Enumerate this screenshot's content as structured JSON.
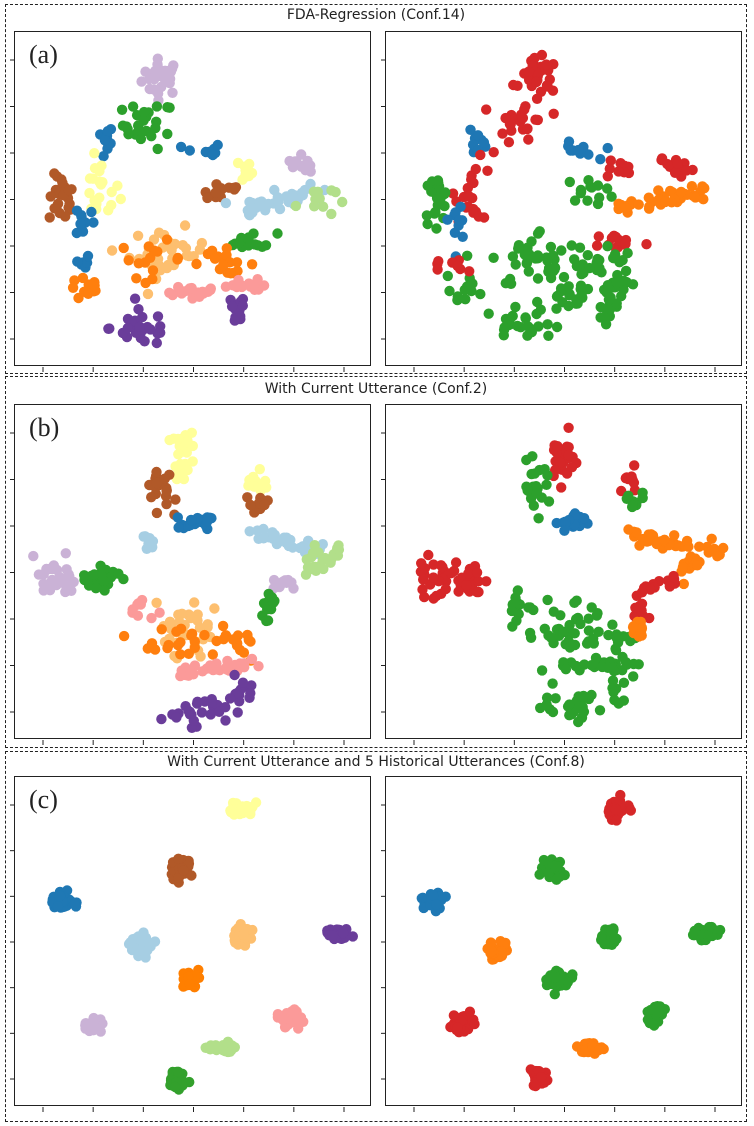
{
  "sections": [
    {
      "title": "FDA-Regression (Conf.14)",
      "label": "(a)"
    },
    {
      "title": "With Current Utterance (Conf.2)",
      "label": "(b)"
    },
    {
      "title": "With Current Utterance and 5 Historical Utterances (Conf.8)",
      "label": "(c)"
    }
  ],
  "colors": {
    "blue": "#1f77b4",
    "orange": "#ff7f0e",
    "green": "#2ca02c",
    "red": "#d62728",
    "purple": "#6a3d9a",
    "lightpurple": "#cab2d6",
    "brown": "#b15928",
    "yellow": "#ffff99",
    "lightblue": "#a6cee3",
    "lightorange": "#fdbf6f",
    "pink": "#fb9a99",
    "lightgreen": "#b2df8a",
    "paired_blue": "#1f78b4",
    "paired_orange": "#ff7f00",
    "paired_green": "#33a02c"
  },
  "chart_data": [
    {
      "type": "scatter",
      "panel": "a-left",
      "xlim": [
        0,
        100
      ],
      "ylim": [
        0,
        100
      ],
      "clusters": [
        {
          "color": "lightpurple",
          "x": 40,
          "y": 91,
          "kind": "blob",
          "n": 30,
          "sx": 3,
          "sy": 3
        },
        {
          "color": "green",
          "x": 36,
          "y": 75,
          "kind": "blob",
          "n": 25,
          "sx": 4,
          "sy": 4
        },
        {
          "color": "blue",
          "x": 22,
          "y": 69,
          "kind": "blob",
          "n": 10,
          "sx": 1.5,
          "sy": 3
        },
        {
          "color": "yellow",
          "x": 21,
          "y": 53,
          "kind": "blob",
          "n": 20,
          "sx": 3,
          "sy": 5
        },
        {
          "color": "brown",
          "x": 9,
          "y": 50,
          "kind": "blob",
          "n": 22,
          "sx": 2,
          "sy": 4
        },
        {
          "color": "blue",
          "x": 16,
          "y": 43,
          "kind": "blob",
          "n": 10,
          "sx": 1.5,
          "sy": 3
        },
        {
          "color": "blue",
          "x": 53,
          "y": 66,
          "kind": "blob",
          "n": 10,
          "sx": 3,
          "sy": 1.5
        },
        {
          "color": "yellow",
          "x": 65,
          "y": 60,
          "kind": "blob",
          "n": 10,
          "sx": 3,
          "sy": 2
        },
        {
          "color": "brown",
          "x": 58,
          "y": 53,
          "kind": "blob",
          "n": 14,
          "sx": 4,
          "sy": 2
        },
        {
          "color": "lightpurple",
          "x": 80,
          "y": 63,
          "kind": "line",
          "n": 12,
          "x2": 87,
          "y2": 61,
          "jit": 1.5
        },
        {
          "color": "lightblue",
          "x": 65,
          "y": 47,
          "kind": "line",
          "n": 40,
          "x2": 92,
          "y2": 53,
          "jit": 1.5
        },
        {
          "color": "lightgreen",
          "x": 88,
          "y": 50,
          "kind": "blob",
          "n": 12,
          "sx": 3,
          "sy": 3
        },
        {
          "color": "green",
          "x": 68,
          "y": 36,
          "kind": "blob",
          "n": 15,
          "sx": 4,
          "sy": 1.5
        },
        {
          "color": "lightorange",
          "x": 42,
          "y": 32,
          "kind": "blob",
          "n": 35,
          "sx": 6,
          "sy": 4
        },
        {
          "color": "orange",
          "x": 37,
          "y": 30,
          "kind": "blob",
          "n": 15,
          "sx": 5,
          "sy": 3
        },
        {
          "color": "orange",
          "x": 59,
          "y": 29,
          "kind": "blob",
          "n": 18,
          "sx": 5,
          "sy": 2
        },
        {
          "color": "pink",
          "x": 43,
          "y": 18,
          "kind": "line",
          "n": 22,
          "x2": 55,
          "y2": 19,
          "jit": 1.5
        },
        {
          "color": "pink",
          "x": 60,
          "y": 20,
          "kind": "line",
          "n": 14,
          "x2": 72,
          "y2": 22,
          "jit": 1.2
        },
        {
          "color": "purple",
          "x": 34,
          "y": 7,
          "kind": "blob",
          "n": 28,
          "sx": 5,
          "sy": 3
        },
        {
          "color": "purple",
          "x": 63,
          "y": 12,
          "kind": "blob",
          "n": 12,
          "sx": 1.5,
          "sy": 3
        },
        {
          "color": "orange",
          "x": 17,
          "y": 20,
          "kind": "blob",
          "n": 12,
          "sx": 3,
          "sy": 2
        },
        {
          "color": "blue",
          "x": 15,
          "y": 28,
          "kind": "blob",
          "n": 6,
          "sx": 1.5,
          "sy": 2
        }
      ]
    },
    {
      "type": "scatter",
      "panel": "a-right",
      "xlim": [
        0,
        100
      ],
      "ylim": [
        0,
        100
      ],
      "clusters": [
        {
          "color": "red",
          "x": 42,
          "y": 91,
          "kind": "blob",
          "n": 30,
          "sx": 3,
          "sy": 3
        },
        {
          "color": "red",
          "x": 37,
          "y": 76,
          "kind": "blob",
          "n": 25,
          "sx": 4,
          "sy": 4
        },
        {
          "color": "blue",
          "x": 23,
          "y": 70,
          "kind": "blob",
          "n": 10,
          "sx": 1.5,
          "sy": 3
        },
        {
          "color": "red",
          "x": 22,
          "y": 53,
          "kind": "blob",
          "n": 20,
          "sx": 3,
          "sy": 5
        },
        {
          "color": "green",
          "x": 10,
          "y": 50,
          "kind": "blob",
          "n": 22,
          "sx": 2,
          "sy": 4
        },
        {
          "color": "blue",
          "x": 17,
          "y": 43,
          "kind": "blob",
          "n": 10,
          "sx": 1.5,
          "sy": 3
        },
        {
          "color": "blue",
          "x": 54,
          "y": 66,
          "kind": "blob",
          "n": 10,
          "sx": 3,
          "sy": 1.5
        },
        {
          "color": "red",
          "x": 66,
          "y": 60,
          "kind": "blob",
          "n": 10,
          "sx": 3,
          "sy": 2
        },
        {
          "color": "green",
          "x": 58,
          "y": 53,
          "kind": "blob",
          "n": 14,
          "sx": 4,
          "sy": 2
        },
        {
          "color": "red",
          "x": 81,
          "y": 63,
          "kind": "line",
          "n": 12,
          "x2": 87,
          "y2": 60,
          "jit": 1.5
        },
        {
          "color": "orange",
          "x": 66,
          "y": 47,
          "kind": "line",
          "n": 40,
          "x2": 93,
          "y2": 53,
          "jit": 1.5
        },
        {
          "color": "red",
          "x": 67,
          "y": 36,
          "kind": "blob",
          "n": 14,
          "sx": 4,
          "sy": 1.5
        },
        {
          "color": "green",
          "x": 43,
          "y": 30,
          "kind": "blob",
          "n": 40,
          "sx": 8,
          "sy": 5
        },
        {
          "color": "green",
          "x": 60,
          "y": 29,
          "kind": "blob",
          "n": 22,
          "sx": 6,
          "sy": 3
        },
        {
          "color": "green",
          "x": 46,
          "y": 18,
          "kind": "line",
          "n": 20,
          "x2": 58,
          "y2": 20,
          "jit": 1.5
        },
        {
          "color": "green",
          "x": 62,
          "y": 20,
          "kind": "line",
          "n": 14,
          "x2": 73,
          "y2": 22,
          "jit": 1.2
        },
        {
          "color": "green",
          "x": 36,
          "y": 7,
          "kind": "blob",
          "n": 25,
          "sx": 5,
          "sy": 3
        },
        {
          "color": "green",
          "x": 64,
          "y": 12,
          "kind": "blob",
          "n": 12,
          "sx": 1.5,
          "sy": 3
        },
        {
          "color": "green",
          "x": 18,
          "y": 20,
          "kind": "blob",
          "n": 12,
          "sx": 3,
          "sy": 2
        },
        {
          "color": "red",
          "x": 15,
          "y": 27,
          "kind": "blob",
          "n": 8,
          "sx": 3,
          "sy": 2
        }
      ]
    },
    {
      "type": "scatter",
      "panel": "b-left",
      "xlim": [
        0,
        100
      ],
      "ylim": [
        0,
        100
      ],
      "clusters": [
        {
          "color": "yellow",
          "x": 47,
          "y": 89,
          "kind": "blob",
          "n": 25,
          "sx": 2,
          "sy": 4
        },
        {
          "color": "brown",
          "x": 39,
          "y": 78,
          "kind": "blob",
          "n": 25,
          "sx": 2.5,
          "sy": 4
        },
        {
          "color": "blue",
          "x": 46,
          "y": 66,
          "kind": "line",
          "n": 20,
          "x2": 56,
          "y2": 67,
          "jit": 1.5
        },
        {
          "color": "yellow",
          "x": 69,
          "y": 80,
          "kind": "blob",
          "n": 10,
          "sx": 2,
          "sy": 2
        },
        {
          "color": "brown",
          "x": 70,
          "y": 73,
          "kind": "blob",
          "n": 12,
          "sx": 2,
          "sy": 2
        },
        {
          "color": "lightblue",
          "x": 68,
          "y": 63,
          "kind": "line",
          "n": 30,
          "x2": 90,
          "y2": 58,
          "jit": 1.5
        },
        {
          "color": "lightgreen",
          "x": 86,
          "y": 52,
          "kind": "line",
          "n": 25,
          "x2": 98,
          "y2": 58,
          "jit": 2
        },
        {
          "color": "lightpurple",
          "x": 7,
          "y": 49,
          "kind": "blob",
          "n": 25,
          "sx": 3,
          "sy": 3
        },
        {
          "color": "green",
          "x": 21,
          "y": 48,
          "kind": "blob",
          "n": 25,
          "sx": 3,
          "sy": 3
        },
        {
          "color": "lightpurple",
          "x": 73,
          "y": 45,
          "kind": "line",
          "n": 12,
          "x2": 82,
          "y2": 47,
          "jit": 1
        },
        {
          "color": "green",
          "x": 73,
          "y": 38,
          "kind": "blob",
          "n": 14,
          "sx": 2,
          "sy": 3
        },
        {
          "color": "lightorange",
          "x": 49,
          "y": 30,
          "kind": "blob",
          "n": 35,
          "sx": 5,
          "sy": 4
        },
        {
          "color": "orange",
          "x": 45,
          "y": 26,
          "kind": "blob",
          "n": 18,
          "sx": 5,
          "sy": 3
        },
        {
          "color": "orange",
          "x": 64,
          "y": 27,
          "kind": "blob",
          "n": 15,
          "sx": 4,
          "sy": 3
        },
        {
          "color": "pink",
          "x": 45,
          "y": 17,
          "kind": "line",
          "n": 35,
          "x2": 70,
          "y2": 19,
          "jit": 1.2
        },
        {
          "color": "purple",
          "x": 50,
          "y": 4,
          "kind": "blob",
          "n": 25,
          "sx": 5,
          "sy": 2.5
        },
        {
          "color": "purple",
          "x": 65,
          "y": 9,
          "kind": "blob",
          "n": 12,
          "sx": 2,
          "sy": 3
        },
        {
          "color": "pink",
          "x": 34,
          "y": 38,
          "kind": "blob",
          "n": 10,
          "sx": 2,
          "sy": 2
        },
        {
          "color": "lightblue",
          "x": 36,
          "y": 60,
          "kind": "blob",
          "n": 8,
          "sx": 1.5,
          "sy": 2
        }
      ]
    },
    {
      "type": "scatter",
      "panel": "b-right",
      "xlim": [
        0,
        100
      ],
      "ylim": [
        0,
        100
      ],
      "clusters": [
        {
          "color": "red",
          "x": 49,
          "y": 88,
          "kind": "blob",
          "n": 25,
          "sx": 2,
          "sy": 4
        },
        {
          "color": "green",
          "x": 41,
          "y": 78,
          "kind": "blob",
          "n": 25,
          "sx": 2.5,
          "sy": 4
        },
        {
          "color": "blue",
          "x": 48,
          "y": 66,
          "kind": "line",
          "n": 20,
          "x2": 58,
          "y2": 67,
          "jit": 1.5
        },
        {
          "color": "red",
          "x": 70,
          "y": 80,
          "kind": "blob",
          "n": 10,
          "sx": 2,
          "sy": 2
        },
        {
          "color": "green",
          "x": 71,
          "y": 73,
          "kind": "blob",
          "n": 10,
          "sx": 2,
          "sy": 2
        },
        {
          "color": "orange",
          "x": 69,
          "y": 63,
          "kind": "line",
          "n": 30,
          "x2": 90,
          "y2": 58,
          "jit": 1.5
        },
        {
          "color": "orange",
          "x": 87,
          "y": 52,
          "kind": "line",
          "n": 22,
          "x2": 98,
          "y2": 58,
          "jit": 2
        },
        {
          "color": "red",
          "x": 9,
          "y": 48,
          "kind": "blob",
          "n": 25,
          "sx": 3,
          "sy": 3
        },
        {
          "color": "red",
          "x": 21,
          "y": 48,
          "kind": "blob",
          "n": 25,
          "sx": 3,
          "sy": 3
        },
        {
          "color": "red",
          "x": 74,
          "y": 44,
          "kind": "line",
          "n": 14,
          "x2": 84,
          "y2": 47,
          "jit": 1
        },
        {
          "color": "red",
          "x": 74,
          "y": 38,
          "kind": "blob",
          "n": 10,
          "sx": 2,
          "sy": 2
        },
        {
          "color": "green",
          "x": 50,
          "y": 30,
          "kind": "blob",
          "n": 40,
          "sx": 7,
          "sy": 5
        },
        {
          "color": "green",
          "x": 66,
          "y": 27,
          "kind": "blob",
          "n": 15,
          "sx": 4,
          "sy": 3
        },
        {
          "color": "green",
          "x": 47,
          "y": 18,
          "kind": "line",
          "n": 35,
          "x2": 72,
          "y2": 20,
          "jit": 1.2
        },
        {
          "color": "green",
          "x": 53,
          "y": 5,
          "kind": "blob",
          "n": 25,
          "sx": 5,
          "sy": 2.5
        },
        {
          "color": "green",
          "x": 67,
          "y": 10,
          "kind": "blob",
          "n": 10,
          "sx": 2,
          "sy": 3
        },
        {
          "color": "green",
          "x": 35,
          "y": 40,
          "kind": "blob",
          "n": 10,
          "sx": 2,
          "sy": 2
        },
        {
          "color": "orange",
          "x": 73,
          "y": 32,
          "kind": "blob",
          "n": 10,
          "sx": 2,
          "sy": 2
        }
      ]
    },
    {
      "type": "scatter",
      "panel": "c-left",
      "xlim": [
        0,
        100
      ],
      "ylim": [
        0,
        100
      ],
      "clusters": [
        {
          "color": "yellow",
          "x": 65,
          "y": 95,
          "kind": "blob",
          "n": 40,
          "sx": 1.8,
          "sy": 1.2
        },
        {
          "color": "brown",
          "x": 46,
          "y": 75,
          "kind": "blob",
          "n": 40,
          "sx": 1.4,
          "sy": 1.8
        },
        {
          "color": "paired_blue",
          "x": 9,
          "y": 64,
          "kind": "blob",
          "n": 40,
          "sx": 1.6,
          "sy": 1.4
        },
        {
          "color": "lightblue",
          "x": 34,
          "y": 49,
          "kind": "blob",
          "n": 40,
          "sx": 1.6,
          "sy": 1.6
        },
        {
          "color": "lightorange",
          "x": 65,
          "y": 52,
          "kind": "blob",
          "n": 40,
          "sx": 1.4,
          "sy": 1.7
        },
        {
          "color": "purple",
          "x": 95,
          "y": 53,
          "kind": "blob",
          "n": 40,
          "sx": 1.8,
          "sy": 1.2
        },
        {
          "color": "paired_orange",
          "x": 49,
          "y": 37,
          "kind": "blob",
          "n": 40,
          "sx": 1.8,
          "sy": 1.4
        },
        {
          "color": "lightpurple",
          "x": 19,
          "y": 22,
          "kind": "blob",
          "n": 40,
          "sx": 1.8,
          "sy": 1.3
        },
        {
          "color": "pink",
          "x": 80,
          "y": 24,
          "kind": "blob",
          "n": 40,
          "sx": 1.4,
          "sy": 1.7
        },
        {
          "color": "lightgreen",
          "x": 59,
          "y": 14,
          "kind": "blob",
          "n": 40,
          "sx": 2.2,
          "sy": 0.9
        },
        {
          "color": "paired_green",
          "x": 45,
          "y": 3,
          "kind": "blob",
          "n": 40,
          "sx": 1.5,
          "sy": 1.5
        }
      ]
    },
    {
      "type": "scatter",
      "panel": "c-right",
      "xlim": [
        0,
        100
      ],
      "ylim": [
        0,
        100
      ],
      "clusters": [
        {
          "color": "red",
          "x": 66,
          "y": 95,
          "kind": "blob",
          "n": 40,
          "sx": 1.6,
          "sy": 1.3
        },
        {
          "color": "green",
          "x": 46,
          "y": 75,
          "kind": "blob",
          "n": 40,
          "sx": 1.4,
          "sy": 1.8
        },
        {
          "color": "paired_blue",
          "x": 9,
          "y": 64,
          "kind": "blob",
          "n": 40,
          "sx": 1.6,
          "sy": 1.4
        },
        {
          "color": "orange",
          "x": 30,
          "y": 47,
          "kind": "blob",
          "n": 40,
          "sx": 1.4,
          "sy": 1.6
        },
        {
          "color": "green",
          "x": 64,
          "y": 52,
          "kind": "blob",
          "n": 40,
          "sx": 1.4,
          "sy": 1.7
        },
        {
          "color": "green",
          "x": 94,
          "y": 53,
          "kind": "blob",
          "n": 40,
          "sx": 1.8,
          "sy": 1.2
        },
        {
          "color": "green",
          "x": 49,
          "y": 37,
          "kind": "blob",
          "n": 40,
          "sx": 1.8,
          "sy": 1.4
        },
        {
          "color": "red",
          "x": 18,
          "y": 22,
          "kind": "blob",
          "n": 40,
          "sx": 1.8,
          "sy": 1.3
        },
        {
          "color": "green",
          "x": 78,
          "y": 25,
          "kind": "blob",
          "n": 40,
          "sx": 1.4,
          "sy": 1.7
        },
        {
          "color": "orange",
          "x": 57,
          "y": 14,
          "kind": "blob",
          "n": 40,
          "sx": 2.2,
          "sy": 0.9
        },
        {
          "color": "red",
          "x": 42,
          "y": 4,
          "kind": "blob",
          "n": 40,
          "sx": 1.5,
          "sy": 1.5
        }
      ]
    }
  ]
}
